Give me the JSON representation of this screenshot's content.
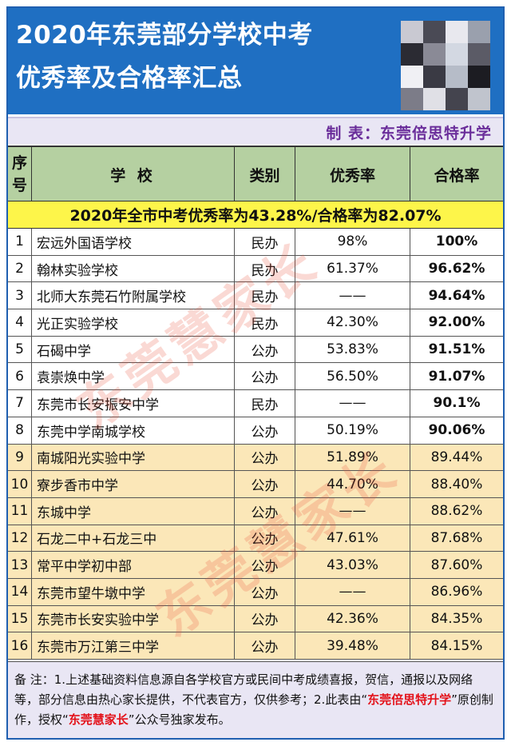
{
  "header": {
    "title_line1": "2020年东莞部分学校中考",
    "title_line2": "优秀率及合格率汇总",
    "maker": "制 表：东莞倍思特升学"
  },
  "table": {
    "headers": {
      "no": [
        "序",
        "号"
      ],
      "school": "学 校",
      "type": "类别",
      "excel": "优秀率",
      "pass": "合格率"
    },
    "citywide": "2020年全市中考优秀率为43.28%/合格率为82.07%",
    "rows": [
      {
        "no": "1",
        "school": "宏远外国语学校",
        "type": "民办",
        "excel": "98%",
        "pass": "100%"
      },
      {
        "no": "2",
        "school": "翰林实验学校",
        "type": "民办",
        "excel": "61.37%",
        "pass": "96.62%"
      },
      {
        "no": "3",
        "school": "北师大东莞石竹附属学校",
        "type": "民办",
        "excel": "——",
        "pass": "94.64%"
      },
      {
        "no": "4",
        "school": "光正实验学校",
        "type": "民办",
        "excel": "42.30%",
        "pass": "92.00%"
      },
      {
        "no": "5",
        "school": "石碣中学",
        "type": "公办",
        "excel": "53.83%",
        "pass": "91.51%"
      },
      {
        "no": "6",
        "school": "袁崇焕中学",
        "type": "公办",
        "excel": "56.50%",
        "pass": "91.07%"
      },
      {
        "no": "7",
        "school": "东莞市长安振安中学",
        "type": "民办",
        "excel": "——",
        "pass": "90.1%"
      },
      {
        "no": "8",
        "school": "东莞中学南城学校",
        "type": "公办",
        "excel": "50.19%",
        "pass": "90.06%"
      },
      {
        "no": "9",
        "school": "南城阳光实验中学",
        "type": "公办",
        "excel": "51.89%",
        "pass": "89.44%"
      },
      {
        "no": "10",
        "school": "寮步香市中学",
        "type": "公办",
        "excel": "44.70%",
        "pass": "88.40%"
      },
      {
        "no": "11",
        "school": "东城中学",
        "type": "公办",
        "excel": "——",
        "pass": "88.62%"
      },
      {
        "no": "12",
        "school": "石龙二中+石龙三中",
        "type": "公办",
        "excel": "47.61%",
        "pass": "87.68%"
      },
      {
        "no": "13",
        "school": "常平中学初中部",
        "type": "公办",
        "excel": "43.03%",
        "pass": "87.60%"
      },
      {
        "no": "14",
        "school": "东莞市望牛墩中学",
        "type": "公办",
        "excel": "——",
        "pass": "86.96%"
      },
      {
        "no": "15",
        "school": "东莞市长安实验中学",
        "type": "公办",
        "excel": "42.36%",
        "pass": "84.35%"
      },
      {
        "no": "16",
        "school": "东莞市万江第三中学",
        "type": "公办",
        "excel": "39.48%",
        "pass": "84.15%"
      }
    ]
  },
  "watermark": {
    "text1": "东莞慧家长",
    "text2": "东莞慧家长"
  },
  "notes": {
    "part1": "备 注：1.上述基础资料信息源自各学校官方或民间中考成绩喜报，贺信，通报以及网络等，部分信息由热心家长提供，不代表官方，仅供参考；2.此表由“",
    "hl1": "东莞倍思特升学",
    "part2": "”原创制作，授权“",
    "hl2": "东莞慧家长",
    "part3": "”公众号独家发布。"
  },
  "colors": {
    "header_blue": "#1f6fc2",
    "header_green": "#b5d0a1",
    "citywide_yellow": "#fdf54a",
    "row_beige": "#fbe7b8",
    "accent_red": "#e3121a",
    "maker_purple": "#6a2d9a"
  }
}
